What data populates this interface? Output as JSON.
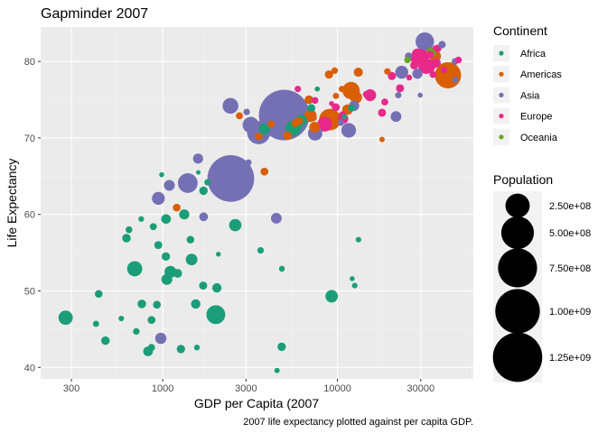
{
  "chart_data": {
    "type": "scatter",
    "title": "Gapminder 2007",
    "xlabel": "GDP per Capita (2007",
    "ylabel": "Life Expectancy",
    "caption": "2007 life expectancy plotted against per capita GDP.",
    "x_scale": "log10",
    "xlim": [
      200,
      60000
    ],
    "ylim": [
      38.5,
      84.5
    ],
    "x_ticks": [
      300,
      1000,
      3000,
      10000,
      30000
    ],
    "x_tick_labels": [
      "300",
      "1000",
      "3000",
      "10000",
      "30000"
    ],
    "y_ticks": [
      40,
      50,
      60,
      70,
      80
    ],
    "y_tick_labels": [
      "40",
      "50",
      "60",
      "70",
      "80"
    ],
    "grid": true,
    "legend_position": "right",
    "color_legend": {
      "title": "Continent",
      "entries": [
        {
          "label": "Africa",
          "color": "#1b9e77"
        },
        {
          "label": "Americas",
          "color": "#d95f02"
        },
        {
          "label": "Asia",
          "color": "#7570b3"
        },
        {
          "label": "Europe",
          "color": "#e7298a"
        },
        {
          "label": "Oceania",
          "color": "#66a61e"
        }
      ]
    },
    "size_legend": {
      "title": "Population",
      "entries": [
        {
          "label": "2.50e+08",
          "value": 250000000
        },
        {
          "label": "5.00e+08",
          "value": 500000000
        },
        {
          "label": "7.50e+08",
          "value": 750000000
        },
        {
          "label": "1.00e+09",
          "value": 1000000000
        },
        {
          "label": "1.25e+09",
          "value": 1250000000
        }
      ]
    },
    "series": [
      {
        "name": "Africa",
        "color": "#1b9e77",
        "points": [
          [
            6223,
            72.3,
            33.3
          ],
          [
            4797,
            42.7,
            12.4
          ],
          [
            1441,
            56.7,
            8.1
          ],
          [
            12570,
            50.7,
            1.6
          ],
          [
            1217,
            52.3,
            14.3
          ],
          [
            430,
            49.6,
            8.4
          ],
          [
            2042,
            50.4,
            17.7
          ],
          [
            706,
            44.7,
            4.4
          ],
          [
            1704,
            50.7,
            10.2
          ],
          [
            986,
            65.2,
            0.7
          ],
          [
            278,
            46.5,
            64.6
          ],
          [
            3633,
            55.3,
            3.8
          ],
          [
            1545,
            48.3,
            18.0
          ],
          [
            2082,
            54.8,
            0.5
          ],
          [
            5581,
            71.3,
            80.3
          ],
          [
            12154,
            51.6,
            0.6
          ],
          [
            641,
            58.0,
            4.9
          ],
          [
            691,
            52.9,
            76.5
          ],
          [
            13206,
            56.7,
            1.5
          ],
          [
            753,
            59.4,
            1.7
          ],
          [
            1328,
            60.0,
            22.9
          ],
          [
            943,
            56.0,
            9.9
          ],
          [
            579,
            46.4,
            1.5
          ],
          [
            1463,
            54.1,
            35.6
          ],
          [
            1569,
            42.6,
            2.0
          ],
          [
            415,
            45.7,
            3.2
          ],
          [
            12057,
            73.9,
            6.0
          ],
          [
            1045,
            59.4,
            19.2
          ],
          [
            759,
            48.3,
            13.3
          ],
          [
            1042,
            54.5,
            12.0
          ],
          [
            1803,
            64.2,
            3.3
          ],
          [
            10957,
            72.8,
            1.3
          ],
          [
            3820,
            71.2,
            33.8
          ],
          [
            824,
            42.1,
            20.0
          ],
          [
            4811,
            52.9,
            2.1
          ],
          [
            620,
            56.9,
            12.9
          ],
          [
            2014,
            46.9,
            135.0
          ],
          [
            7670,
            76.4,
            0.8
          ],
          [
            863,
            46.2,
            8.9
          ],
          [
            1598,
            65.5,
            0.2
          ],
          [
            1712,
            63.1,
            12.3
          ],
          [
            862,
            42.6,
            6.1
          ],
          [
            926,
            48.2,
            9.1
          ],
          [
            9270,
            49.3,
            43.9
          ],
          [
            2602,
            58.6,
            42.3
          ],
          [
            4513,
            39.6,
            1.1
          ],
          [
            1107,
            52.5,
            38.1
          ],
          [
            883,
            58.4,
            5.7
          ],
          [
            7093,
            73.9,
            10.3
          ],
          [
            1056,
            51.5,
            29.2
          ],
          [
            1271,
            42.4,
            11.7
          ],
          [
            470,
            43.5,
            12.3
          ]
        ]
      },
      {
        "name": "Americas",
        "color": "#d95f02",
        "points": [
          [
            12779,
            75.3,
            40.3
          ],
          [
            3822,
            65.6,
            9.1
          ],
          [
            9066,
            72.4,
            190.0
          ],
          [
            36319,
            80.7,
            33.4
          ],
          [
            13172,
            78.6,
            16.3
          ],
          [
            7007,
            72.9,
            44.2
          ],
          [
            9645,
            78.8,
            4.1
          ],
          [
            8948,
            78.3,
            11.4
          ],
          [
            6025,
            72.2,
            9.3
          ],
          [
            6873,
            75.0,
            13.8
          ],
          [
            5728,
            71.9,
            6.9
          ],
          [
            5186,
            70.3,
            12.6
          ],
          [
            1202,
            60.9,
            8.5
          ],
          [
            3548,
            70.2,
            7.5
          ],
          [
            7321,
            72.6,
            2.8
          ],
          [
            11978,
            76.2,
            108.7
          ],
          [
            2749,
            72.9,
            5.7
          ],
          [
            9809,
            75.5,
            3.2
          ],
          [
            4173,
            71.8,
            6.7
          ],
          [
            7409,
            71.4,
            28.7
          ],
          [
            19329,
            78.7,
            3.9
          ],
          [
            18009,
            69.8,
            1.1
          ],
          [
            42952,
            78.2,
            301.1
          ],
          [
            10611,
            76.4,
            3.4
          ],
          [
            11416,
            73.7,
            26.1
          ]
        ]
      },
      {
        "name": "Asia",
        "color": "#7570b3",
        "points": [
          [
            975,
            43.8,
            31.9
          ],
          [
            29796,
            75.6,
            0.7
          ],
          [
            1391,
            64.1,
            150.4
          ],
          [
            1714,
            59.7,
            14.1
          ],
          [
            4959,
            73.0,
            1318.7
          ],
          [
            39725,
            82.2,
            6.98
          ],
          [
            2452,
            64.7,
            1110.4
          ],
          [
            3541,
            70.7,
            223.5
          ],
          [
            11606,
            71.0,
            69.5
          ],
          [
            4471,
            59.5,
            27.5
          ],
          [
            25523,
            80.7,
            6.4
          ],
          [
            31656,
            82.6,
            127.5
          ],
          [
            4519,
            72.5,
            6.1
          ],
          [
            1593,
            67.3,
            23.3
          ],
          [
            23348,
            78.6,
            49.0
          ],
          [
            47307,
            77.6,
            2.5
          ],
          [
            10461,
            72.0,
            3.9
          ],
          [
            12452,
            74.2,
            24.8
          ],
          [
            3096,
            66.8,
            2.9
          ],
          [
            944,
            62.1,
            47.8
          ],
          [
            1091,
            63.8,
            28.9
          ],
          [
            22316,
            75.6,
            3.2
          ],
          [
            2606,
            65.5,
            169.3
          ],
          [
            3190,
            71.7,
            91.1
          ],
          [
            21655,
            72.8,
            27.6
          ],
          [
            47143,
            80.0,
            4.6
          ],
          [
            3970,
            72.4,
            20.4
          ],
          [
            4185,
            74.1,
            19.3
          ],
          [
            28718,
            78.4,
            23.2
          ],
          [
            7458,
            70.6,
            65.1
          ],
          [
            2442,
            74.2,
            85.3
          ],
          [
            3025,
            73.4,
            4.0
          ],
          [
            2281,
            62.7,
            22.2
          ]
        ]
      },
      {
        "name": "Europe",
        "color": "#e7298a",
        "points": [
          [
            5937,
            76.4,
            3.6
          ],
          [
            36126,
            79.8,
            8.2
          ],
          [
            33693,
            79.4,
            10.4
          ],
          [
            7446,
            74.9,
            4.6
          ],
          [
            10681,
            73.0,
            7.3
          ],
          [
            14619,
            75.7,
            4.5
          ],
          [
            22833,
            76.5,
            10.2
          ],
          [
            35278,
            78.3,
            5.5
          ],
          [
            33207,
            79.3,
            5.2
          ],
          [
            30470,
            80.7,
            61.1
          ],
          [
            32170,
            79.4,
            82.4
          ],
          [
            27538,
            79.5,
            10.7
          ],
          [
            18009,
            73.3,
            10.0
          ],
          [
            36181,
            81.8,
            0.3
          ],
          [
            40676,
            78.9,
            4.1
          ],
          [
            28570,
            80.5,
            58.1
          ],
          [
            9254,
            74.5,
            0.7
          ],
          [
            36798,
            79.8,
            16.6
          ],
          [
            49357,
            80.2,
            4.6
          ],
          [
            15390,
            75.6,
            38.5
          ],
          [
            20510,
            78.1,
            10.6
          ],
          [
            10808,
            72.5,
            22.3
          ],
          [
            9787,
            74.0,
            10.2
          ],
          [
            18678,
            74.7,
            5.4
          ],
          [
            25768,
            77.9,
            2.0
          ],
          [
            28821,
            80.9,
            40.4
          ],
          [
            33860,
            80.9,
            9.0
          ],
          [
            37506,
            81.7,
            7.6
          ],
          [
            8458,
            71.8,
            71.2
          ],
          [
            33203,
            79.4,
            60.8
          ]
        ]
      },
      {
        "name": "Oceania",
        "color": "#66a61e",
        "points": [
          [
            34435,
            81.2,
            20.4
          ],
          [
            25185,
            80.2,
            4.1
          ]
        ]
      }
    ]
  }
}
